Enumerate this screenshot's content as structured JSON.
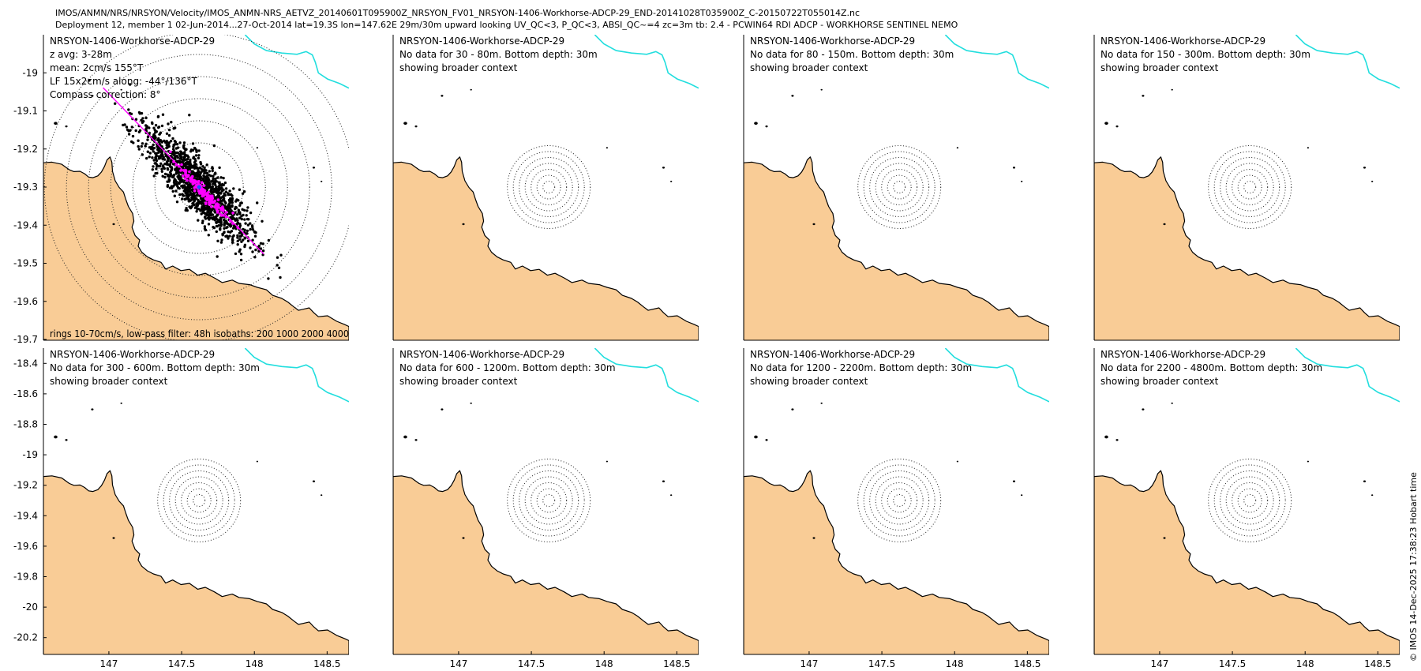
{
  "header": {
    "line1": "IMOS/ANMN/NRS/NRSYON/Velocity/IMOS_ANMN-NRS_AETVZ_20140601T095900Z_NRSYON_FV01_NRSYON-1406-Workhorse-ADCP-29_END-20141028T035900Z_C-20150722T055014Z.nc",
    "line2": "Deployment 12, member 1 02-Jun-2014...27-Oct-2014 lat=19.3S lon=147.62E 29m/30m upward looking UV_QC<3, P_QC<3, ABSI_QC~=4 zc=3m tb: 2.4 - PCWIN64 RDI ADCP - WORKHORSE SENTINEL NEMO"
  },
  "credit": "© IMOS 14-Dec-2025 17:38:23 Hobart time",
  "colors": {
    "land": "#f9cc96",
    "coast": "#000000",
    "isobath": "#22dede",
    "scatter": "#000000",
    "lowpass": "#ff00ff",
    "axis": "#000000"
  },
  "chart_data": [
    {
      "type": "scatter",
      "title": "NRSYON-1406-Workhorse-ADCP-29",
      "info": [
        "z avg: 3-28m",
        "mean: 2cm/s 155°T",
        "LF 15x2cm/s along: -44°/136°T",
        "Compass correction: 8°"
      ],
      "footer": "rings 10-70cm/s, low-pass filter: 48h isobaths: 200 1000 2000 4000",
      "xlim": [
        146.55,
        148.65
      ],
      "ylim": [
        -19.7,
        -18.9
      ],
      "yticks": [
        -19,
        -19.1,
        -19.2,
        -19.3,
        -19.4,
        -19.5,
        -19.6,
        -19.7
      ],
      "xticks": [],
      "mooring": {
        "lon": 147.62,
        "lat": -19.3
      },
      "rings_cm_s": [
        10,
        20,
        30,
        40,
        50,
        60,
        70
      ],
      "current_mean": {
        "speed_cm_s": 2,
        "direction_degT": 155
      },
      "principal_axis": {
        "along_degT": 136,
        "major_cm_s": 15,
        "minor_cm_s": 2
      },
      "has_data": true
    },
    {
      "type": "scatter",
      "title": "NRSYON-1406-Workhorse-ADCP-29",
      "info": [
        "No data for 30 - 80m. Bottom depth: 30m",
        "showing broader context"
      ],
      "xlim": [
        146.55,
        148.65
      ],
      "ylim": [
        -19.7,
        -18.9
      ],
      "yticks": [],
      "xticks": [],
      "mooring": {
        "lon": 147.62,
        "lat": -19.3
      },
      "rings_cm_s": [
        10,
        20,
        30,
        40,
        50,
        60,
        70
      ],
      "has_data": false
    },
    {
      "type": "scatter",
      "title": "NRSYON-1406-Workhorse-ADCP-29",
      "info": [
        "No data for 80 - 150m. Bottom depth: 30m",
        "showing broader context"
      ],
      "xlim": [
        146.55,
        148.65
      ],
      "ylim": [
        -19.7,
        -18.9
      ],
      "yticks": [],
      "xticks": [],
      "mooring": {
        "lon": 147.62,
        "lat": -19.3
      },
      "rings_cm_s": [
        10,
        20,
        30,
        40,
        50,
        60,
        70
      ],
      "has_data": false
    },
    {
      "type": "scatter",
      "title": "NRSYON-1406-Workhorse-ADCP-29",
      "info": [
        "No data for 150 - 300m. Bottom depth: 30m",
        "showing broader context"
      ],
      "xlim": [
        146.55,
        148.65
      ],
      "ylim": [
        -19.7,
        -18.9
      ],
      "yticks": [],
      "xticks": [],
      "mooring": {
        "lon": 147.62,
        "lat": -19.3
      },
      "rings_cm_s": [
        10,
        20,
        30,
        40,
        50,
        60,
        70
      ],
      "has_data": false
    },
    {
      "type": "scatter",
      "title": "NRSYON-1406-Workhorse-ADCP-29",
      "info": [
        "No data for 300 - 600m. Bottom depth: 30m",
        "showing broader context"
      ],
      "xlim": [
        146.55,
        148.65
      ],
      "ylim": [
        -20.3,
        -18.3
      ],
      "yticks": [
        -18.4,
        -18.6,
        -18.8,
        -19,
        -19.2,
        -19.4,
        -19.6,
        -19.8,
        -20,
        -20.2
      ],
      "xticks": [
        147,
        147.5,
        148,
        148.5
      ],
      "mooring": {
        "lon": 147.62,
        "lat": -19.3
      },
      "rings_cm_s": [
        10,
        20,
        30,
        40,
        50,
        60,
        70
      ],
      "has_data": false
    },
    {
      "type": "scatter",
      "title": "NRSYON-1406-Workhorse-ADCP-29",
      "info": [
        "No data for 600 - 1200m. Bottom depth: 30m",
        "showing broader context"
      ],
      "xlim": [
        146.55,
        148.65
      ],
      "ylim": [
        -20.3,
        -18.3
      ],
      "yticks": [],
      "xticks": [
        147,
        147.5,
        148,
        148.5
      ],
      "mooring": {
        "lon": 147.62,
        "lat": -19.3
      },
      "rings_cm_s": [
        10,
        20,
        30,
        40,
        50,
        60,
        70
      ],
      "has_data": false
    },
    {
      "type": "scatter",
      "title": "NRSYON-1406-Workhorse-ADCP-29",
      "info": [
        "No data for 1200 - 2200m. Bottom depth: 30m",
        "showing broader context"
      ],
      "xlim": [
        146.55,
        148.65
      ],
      "ylim": [
        -20.3,
        -18.3
      ],
      "yticks": [],
      "xticks": [
        147,
        147.5,
        148,
        148.5
      ],
      "mooring": {
        "lon": 147.62,
        "lat": -19.3
      },
      "rings_cm_s": [
        10,
        20,
        30,
        40,
        50,
        60,
        70
      ],
      "has_data": false
    },
    {
      "type": "scatter",
      "title": "NRSYON-1406-Workhorse-ADCP-29",
      "info": [
        "No data for 2200 - 4800m. Bottom depth: 30m",
        "showing broader context"
      ],
      "xlim": [
        146.55,
        148.65
      ],
      "ylim": [
        -20.3,
        -18.3
      ],
      "yticks": [],
      "xticks": [
        147,
        147.5,
        148,
        148.5
      ],
      "mooring": {
        "lon": 147.62,
        "lat": -19.3
      },
      "rings_cm_s": [
        10,
        20,
        30,
        40,
        50,
        60,
        70
      ],
      "has_data": false
    }
  ]
}
